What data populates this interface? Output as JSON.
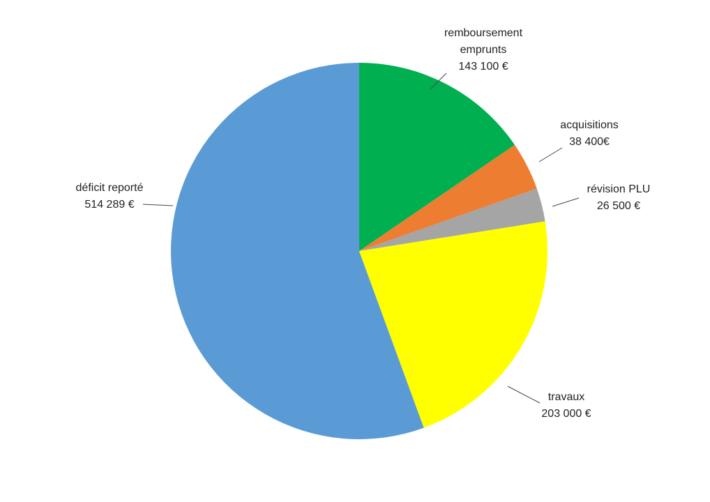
{
  "chart_data": {
    "type": "pie",
    "categories": [
      "remboursement emprunts",
      "acquisitions",
      "révision PLU",
      "travaux",
      "déficit reporté"
    ],
    "values": [
      143100,
      38400,
      26500,
      203000,
      514289
    ],
    "value_labels": [
      "143 100 €",
      "38 400€",
      "26 500 €",
      "203 000 €",
      "514 289 €"
    ],
    "colors": [
      "#00b050",
      "#ed7d31",
      "#a5a5a5",
      "#ffff00",
      "#5b9bd5"
    ]
  }
}
